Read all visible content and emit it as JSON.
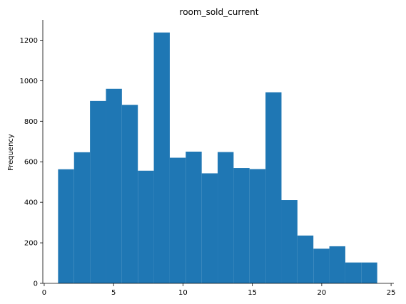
{
  "chart_data": {
    "type": "bar",
    "title": "room_sold_current",
    "xlabel": "",
    "ylabel": "Frequency",
    "bin_edges": [
      1.0,
      2.15,
      3.3,
      4.45,
      5.6,
      6.75,
      7.9,
      9.05,
      10.2,
      11.35,
      12.5,
      13.65,
      14.8,
      15.95,
      17.1,
      18.25,
      19.4,
      20.55,
      21.7,
      22.85,
      24.0
    ],
    "values": [
      563,
      647,
      900,
      960,
      881,
      556,
      1238,
      620,
      650,
      543,
      648,
      569,
      564,
      943,
      411,
      236,
      171,
      183,
      103,
      103
    ],
    "xlim": [
      -0.1,
      25.2
    ],
    "ylim": [
      0,
      1300
    ],
    "xticks": [
      0,
      5,
      10,
      15,
      20,
      25
    ],
    "yticks": [
      0,
      200,
      400,
      600,
      800,
      1000,
      1200
    ],
    "bar_color": "#1f77b4",
    "grid": false
  }
}
